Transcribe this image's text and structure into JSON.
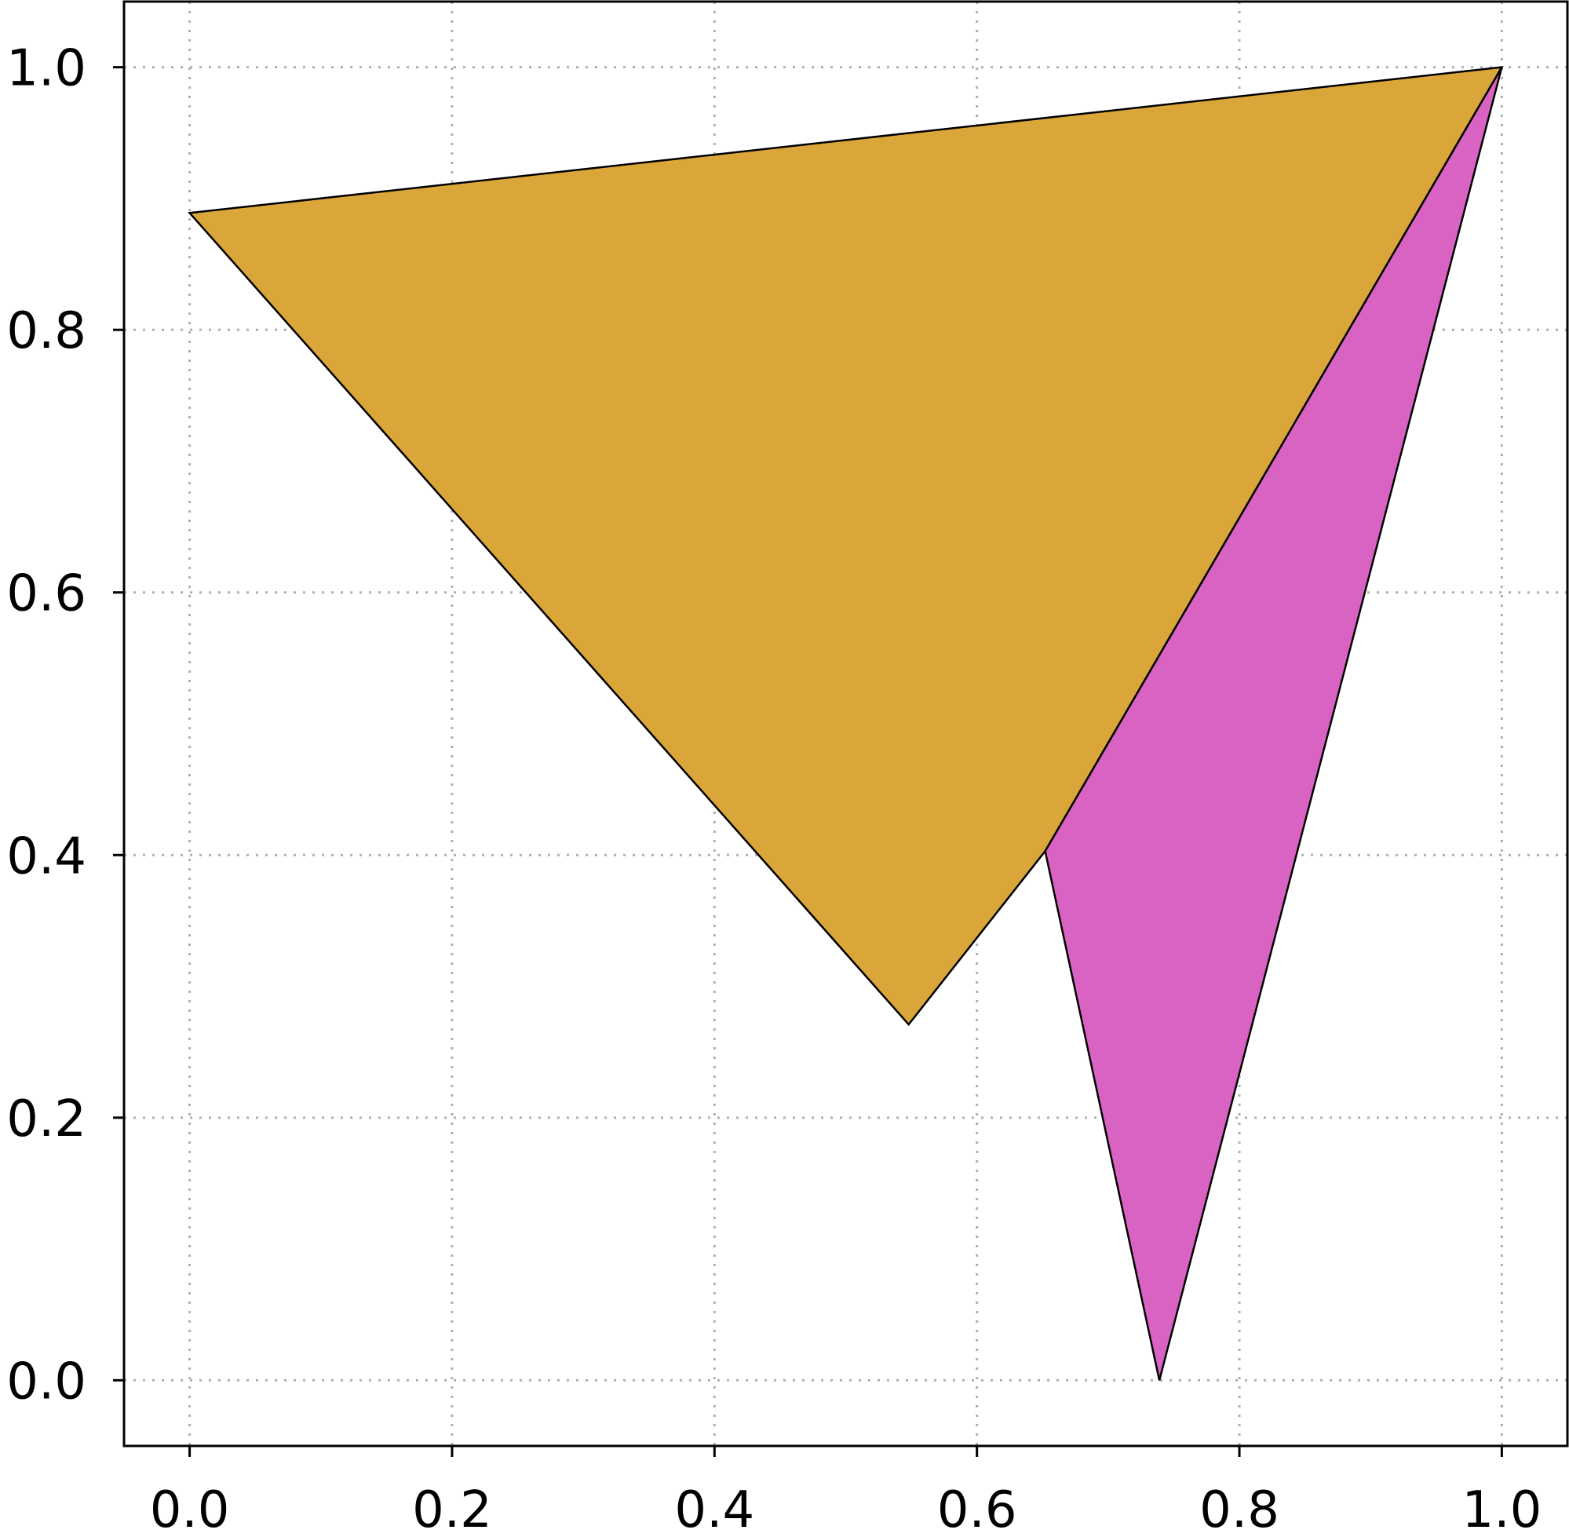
{
  "chart_data": {
    "type": "area",
    "title": "",
    "xlabel": "",
    "ylabel": "",
    "xlim": [
      -0.05,
      1.05
    ],
    "ylim": [
      -0.05,
      1.05
    ],
    "x_ticks": [
      "0.0",
      "0.2",
      "0.4",
      "0.6",
      "0.8",
      "1.0"
    ],
    "y_ticks": [
      "0.0",
      "0.2",
      "0.4",
      "0.6",
      "0.8",
      "1.0"
    ],
    "grid": true,
    "grid_style": "dotted",
    "legend": "none",
    "series": [
      {
        "color": "#DAA63A",
        "vertices": [
          [
            0.0,
            0.889
          ],
          [
            1.0,
            1.0
          ],
          [
            0.652,
            0.403
          ],
          [
            0.548,
            0.271
          ]
        ]
      },
      {
        "color": "#D963C3",
        "vertices": [
          [
            1.0,
            1.0
          ],
          [
            0.652,
            0.403
          ],
          [
            0.739,
            0.0
          ]
        ]
      }
    ]
  }
}
